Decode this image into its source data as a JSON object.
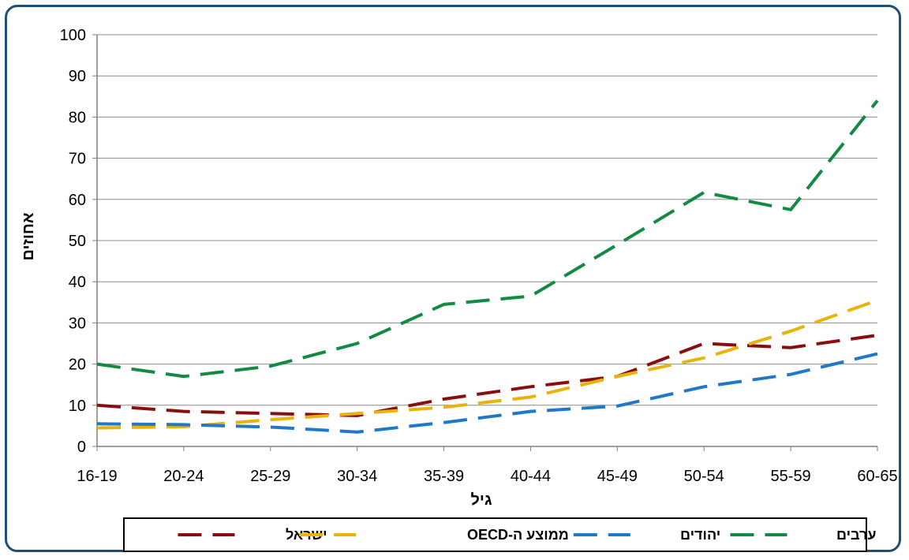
{
  "chart_data": {
    "type": "line",
    "xlabel": "גיל",
    "ylabel": "אחוזים",
    "ylim": [
      0,
      100
    ],
    "yticks": [
      0,
      10,
      20,
      30,
      40,
      50,
      60,
      70,
      80,
      90,
      100
    ],
    "grid": "horizontal",
    "legend_position": "bottom",
    "categories": [
      "16-19",
      "20-24",
      "25-29",
      "30-34",
      "35-39",
      "40-44",
      "45-49",
      "50-54",
      "55-59",
      "60-65"
    ],
    "series": [
      {
        "name": "ישראל",
        "color": "#8b0e0e",
        "values": [
          10,
          8.5,
          8,
          7.5,
          11.5,
          14.5,
          17,
          25,
          24,
          27
        ]
      },
      {
        "name": "ממוצע ה-OECD",
        "color": "#e8b30c",
        "values": [
          4.5,
          4.8,
          6.5,
          8,
          9.5,
          12,
          17,
          21.5,
          28,
          35.5
        ]
      },
      {
        "name": "יהודים",
        "color": "#1f78c8",
        "values": [
          5.5,
          5.3,
          4.7,
          3.5,
          5.8,
          8.5,
          9.8,
          14.5,
          17.5,
          22.5
        ]
      },
      {
        "name": "ערבים",
        "color": "#138a43",
        "values": [
          20,
          17,
          19.5,
          25,
          34.5,
          36.5,
          49,
          61.7,
          57.5,
          84
        ]
      }
    ]
  }
}
